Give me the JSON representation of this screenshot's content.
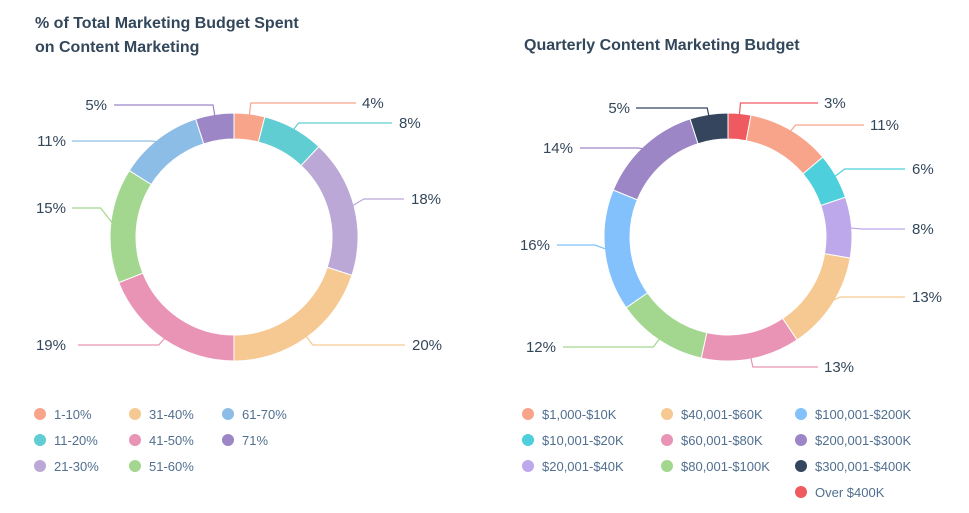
{
  "chart_data": [
    {
      "type": "donut",
      "title_lines": [
        "% of Total Marketing Budget Spent",
        "on Content Marketing"
      ],
      "series": [
        {
          "name": "1-10%",
          "value": 4,
          "color": "#f8a48b"
        },
        {
          "name": "11-20%",
          "value": 8,
          "color": "#5fcdd2"
        },
        {
          "name": "21-30%",
          "value": 18,
          "color": "#bba8d6"
        },
        {
          "name": "31-40%",
          "value": 20,
          "color": "#f6c992"
        },
        {
          "name": "41-50%",
          "value": 19,
          "color": "#e994b4"
        },
        {
          "name": "51-60%",
          "value": 15,
          "color": "#a3d78f"
        },
        {
          "name": "61-70%",
          "value": 11,
          "color": "#8cbde6"
        },
        {
          "name": "71%",
          "value": 5,
          "color": "#9c86c6"
        }
      ],
      "data_labels": [
        "4%",
        "8%",
        "18%",
        "20%",
        "19%",
        "15%",
        "11%",
        "5%"
      ],
      "legend_placement": "bottom"
    },
    {
      "type": "donut",
      "title_lines": [
        "Quarterly Content Marketing Budget"
      ],
      "series": [
        {
          "name": "Over $400K",
          "value": 3,
          "color": "#ef5960"
        },
        {
          "name": "$1,000-$10K",
          "value": 11,
          "color": "#f8a48b"
        },
        {
          "name": "$10,001-$20K",
          "value": 6,
          "color": "#4dd0dc"
        },
        {
          "name": "$20,001-$40K",
          "value": 8,
          "color": "#bca8ea"
        },
        {
          "name": "$40,001-$60K",
          "value": 13,
          "color": "#f6c992"
        },
        {
          "name": "$60,001-$80K",
          "value": 13,
          "color": "#e994b4"
        },
        {
          "name": "$80,001-$100K",
          "value": 12,
          "color": "#a3d78f"
        },
        {
          "name": "$100,001-$200K",
          "value": 16,
          "color": "#82c1fc"
        },
        {
          "name": "$200,001-$300K",
          "value": 14,
          "color": "#9c86c6"
        },
        {
          "name": "$300,001-$400K",
          "value": 5,
          "color": "#34455d"
        }
      ],
      "data_labels": [
        "3%",
        "11%",
        "6%",
        "8%",
        "13%",
        "13%",
        "12%",
        "16%",
        "14%",
        "5%"
      ],
      "legend_order": [
        "$1,000-$10K",
        "$10,001-$20K",
        "$20,001-$40K",
        "$40,001-$60K",
        "$60,001-$80K",
        "$80,001-$100K",
        "$100,001-$200K",
        "$200,001-$300K",
        "$300,001-$400K",
        "Over $400K"
      ],
      "legend_placement": "bottom"
    }
  ]
}
